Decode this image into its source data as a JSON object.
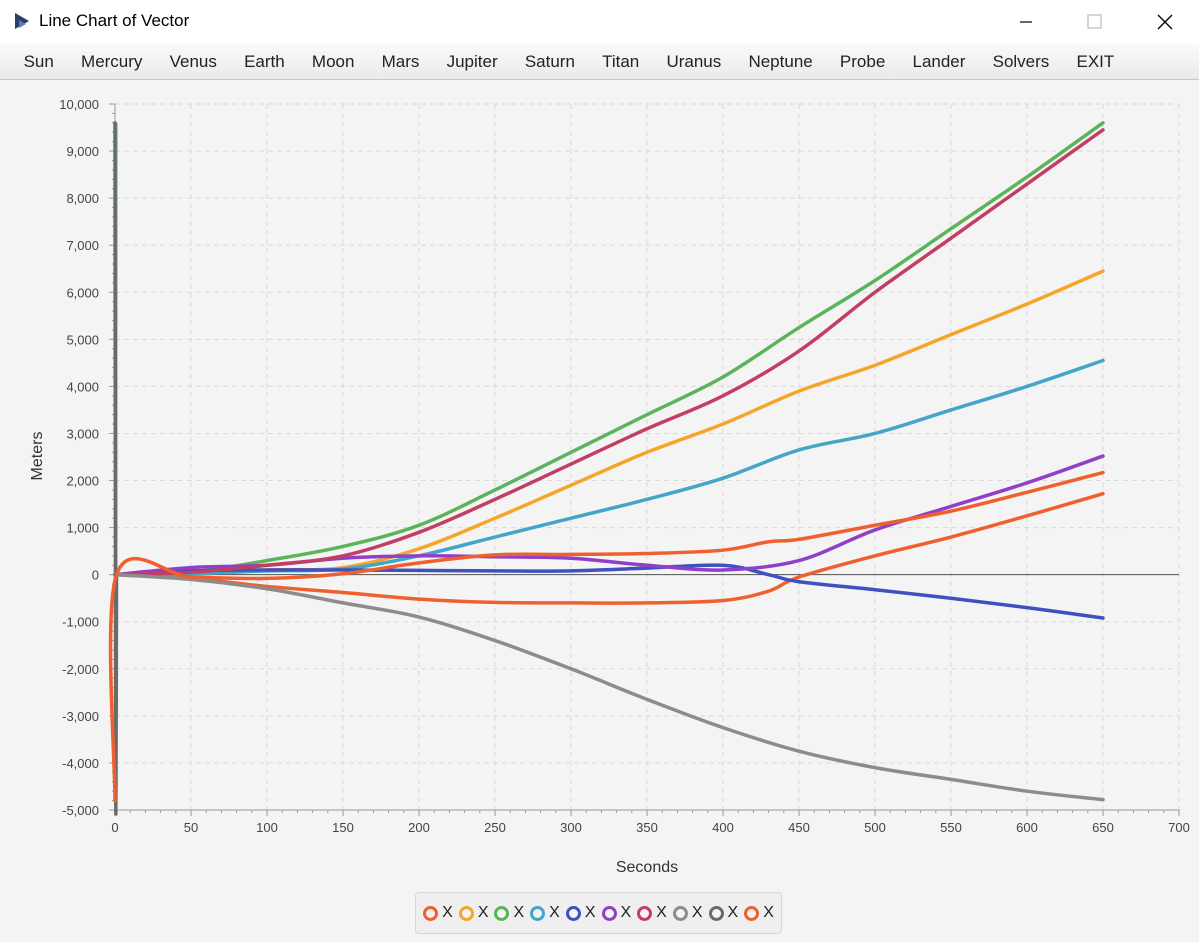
{
  "window": {
    "title": "Line Chart of Vector"
  },
  "menu": [
    "Sun",
    "Mercury",
    "Venus",
    "Earth",
    "Moon",
    "Mars",
    "Jupiter",
    "Saturn",
    "Titan",
    "Uranus",
    "Neptune",
    "Probe",
    "Lander",
    "Solvers",
    "EXIT"
  ],
  "chart_data": {
    "type": "line",
    "title": "",
    "xlabel": "Seconds",
    "ylabel": "Meters",
    "xlim": [
      0,
      700
    ],
    "ylim": [
      -5000,
      10000
    ],
    "x_ticks": [
      "0",
      "50",
      "100",
      "150",
      "200",
      "250",
      "300",
      "350",
      "400",
      "450",
      "500",
      "550",
      "600",
      "650",
      "700"
    ],
    "y_ticks": [
      "10,000",
      "9,000",
      "8,000",
      "7,000",
      "6,000",
      "5,000",
      "4,000",
      "3,000",
      "2,000",
      "1,000",
      "0",
      "-1,000",
      "-2,000",
      "-3,000",
      "-4,000",
      "-5,000"
    ],
    "grid": true,
    "legend_position": "bottom",
    "series": [
      {
        "name": "X",
        "color": "#f0602e",
        "points": [
          [
            0,
            0
          ],
          [
            50,
            -80
          ],
          [
            100,
            -250
          ],
          [
            150,
            -380
          ],
          [
            200,
            -520
          ],
          [
            250,
            -590
          ],
          [
            300,
            -600
          ],
          [
            350,
            -600
          ],
          [
            400,
            -550
          ],
          [
            430,
            -350
          ],
          [
            450,
            -50
          ],
          [
            500,
            400
          ],
          [
            550,
            800
          ],
          [
            600,
            1250
          ],
          [
            650,
            1720
          ]
        ]
      },
      {
        "name": "X",
        "color": "#f7a52a",
        "points": [
          [
            0,
            0
          ],
          [
            50,
            50
          ],
          [
            100,
            100
          ],
          [
            150,
            150
          ],
          [
            200,
            550
          ],
          [
            250,
            1200
          ],
          [
            300,
            1900
          ],
          [
            350,
            2600
          ],
          [
            400,
            3200
          ],
          [
            450,
            3900
          ],
          [
            500,
            4450
          ],
          [
            550,
            5100
          ],
          [
            600,
            5750
          ],
          [
            650,
            6450
          ]
        ]
      },
      {
        "name": "X",
        "color": "#5bb45a",
        "points": [
          [
            0,
            0
          ],
          [
            50,
            50
          ],
          [
            100,
            300
          ],
          [
            150,
            600
          ],
          [
            200,
            1050
          ],
          [
            250,
            1800
          ],
          [
            300,
            2600
          ],
          [
            350,
            3400
          ],
          [
            400,
            4200
          ],
          [
            450,
            5250
          ],
          [
            500,
            6250
          ],
          [
            550,
            7350
          ],
          [
            600,
            8450
          ],
          [
            650,
            9600
          ]
        ]
      },
      {
        "name": "X",
        "color": "#43a6c9",
        "points": [
          [
            0,
            0
          ],
          [
            50,
            20
          ],
          [
            100,
            80
          ],
          [
            150,
            120
          ],
          [
            200,
            400
          ],
          [
            250,
            800
          ],
          [
            300,
            1200
          ],
          [
            350,
            1600
          ],
          [
            400,
            2050
          ],
          [
            450,
            2650
          ],
          [
            500,
            3000
          ],
          [
            550,
            3500
          ],
          [
            600,
            4000
          ],
          [
            650,
            4550
          ]
        ]
      },
      {
        "name": "X",
        "color": "#3f50c0",
        "points": [
          [
            0,
            0
          ],
          [
            50,
            80
          ],
          [
            100,
            100
          ],
          [
            150,
            100
          ],
          [
            200,
            90
          ],
          [
            250,
            80
          ],
          [
            300,
            80
          ],
          [
            350,
            140
          ],
          [
            400,
            200
          ],
          [
            430,
            0
          ],
          [
            450,
            -150
          ],
          [
            500,
            -320
          ],
          [
            550,
            -500
          ],
          [
            600,
            -700
          ],
          [
            650,
            -920
          ]
        ]
      },
      {
        "name": "X",
        "color": "#9040c8",
        "points": [
          [
            0,
            0
          ],
          [
            50,
            150
          ],
          [
            100,
            200
          ],
          [
            150,
            350
          ],
          [
            200,
            400
          ],
          [
            250,
            380
          ],
          [
            300,
            350
          ],
          [
            350,
            200
          ],
          [
            400,
            100
          ],
          [
            450,
            300
          ],
          [
            500,
            950
          ],
          [
            550,
            1450
          ],
          [
            600,
            1950
          ],
          [
            650,
            2520
          ]
        ]
      },
      {
        "name": "X",
        "color": "#c23e62",
        "points": [
          [
            0,
            0
          ],
          [
            50,
            50
          ],
          [
            100,
            200
          ],
          [
            150,
            400
          ],
          [
            200,
            900
          ],
          [
            250,
            1600
          ],
          [
            300,
            2350
          ],
          [
            350,
            3100
          ],
          [
            400,
            3800
          ],
          [
            450,
            4750
          ],
          [
            500,
            6000
          ],
          [
            550,
            7150
          ],
          [
            600,
            8300
          ],
          [
            650,
            9450
          ]
        ]
      },
      {
        "name": "X",
        "color": "#8c8c8c",
        "points": [
          [
            0,
            0
          ],
          [
            50,
            -100
          ],
          [
            100,
            -300
          ],
          [
            150,
            -600
          ],
          [
            200,
            -900
          ],
          [
            250,
            -1400
          ],
          [
            300,
            -2000
          ],
          [
            350,
            -2650
          ],
          [
            400,
            -3250
          ],
          [
            450,
            -3750
          ],
          [
            500,
            -4100
          ],
          [
            550,
            -4350
          ],
          [
            600,
            -4600
          ],
          [
            650,
            -4780
          ]
        ]
      },
      {
        "name": "X",
        "color": "#6a6a6a",
        "points": [
          [
            0,
            9600
          ],
          [
            0.5,
            -4800
          ],
          [
            1,
            0
          ]
        ]
      },
      {
        "name": "X",
        "color": "#f0602e",
        "points": [
          [
            0,
            -4800
          ],
          [
            1,
            0
          ],
          [
            50,
            -50
          ],
          [
            100,
            -80
          ],
          [
            150,
            20
          ],
          [
            200,
            250
          ],
          [
            250,
            420
          ],
          [
            300,
            430
          ],
          [
            350,
            450
          ],
          [
            400,
            520
          ],
          [
            430,
            700
          ],
          [
            450,
            750
          ],
          [
            500,
            1050
          ],
          [
            550,
            1350
          ],
          [
            600,
            1750
          ],
          [
            650,
            2170
          ]
        ]
      }
    ]
  },
  "vertical_spikes": [
    {
      "color": "#43a6c9",
      "from": 0,
      "to": 9600
    },
    {
      "color": "#f0602e",
      "from": 0,
      "to": -4800
    }
  ]
}
